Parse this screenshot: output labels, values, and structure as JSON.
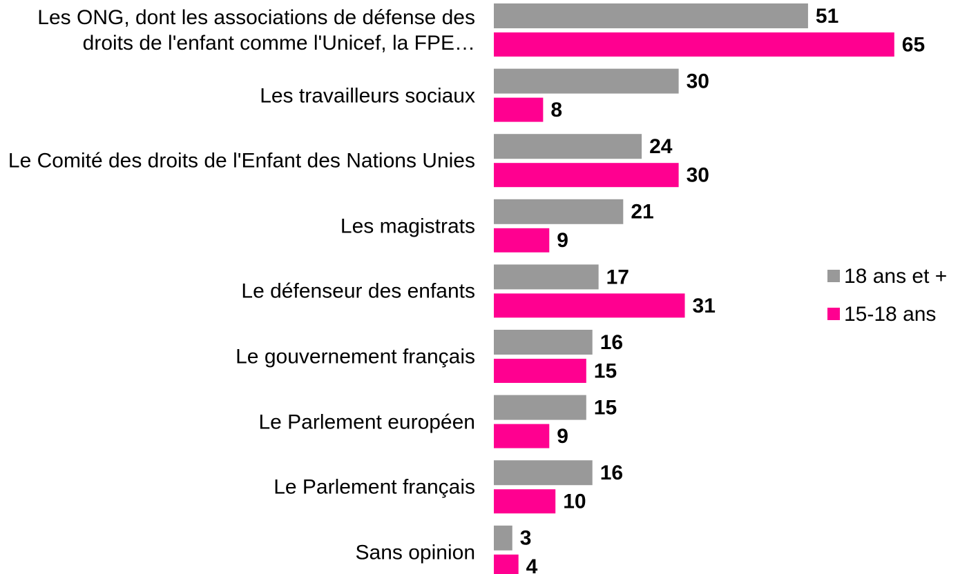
{
  "chart_data": {
    "type": "bar",
    "orientation": "horizontal",
    "categories": [
      "Les ONG, dont les associations de défense des droits de l'enfant comme l'Unicef, la FPE…",
      "Les travailleurs sociaux",
      "Le Comité des droits de l'Enfant des Nations Unies",
      "Les magistrats",
      "Le défenseur des enfants",
      "Le gouvernement français",
      "Le Parlement européen",
      "Le Parlement français",
      "Sans opinion"
    ],
    "series": [
      {
        "name": "18 ans et +",
        "color": "#999999",
        "values": [
          51,
          30,
          24,
          21,
          17,
          16,
          15,
          16,
          3
        ]
      },
      {
        "name": "15-18 ans",
        "color": "#ff0090",
        "values": [
          65,
          8,
          30,
          9,
          31,
          15,
          9,
          10,
          4
        ]
      }
    ],
    "xlim": [
      0,
      70
    ],
    "legend": "right"
  }
}
